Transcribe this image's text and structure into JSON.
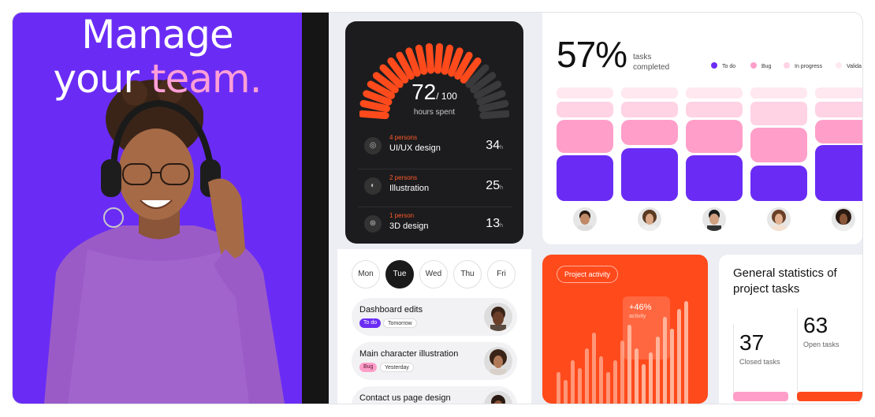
{
  "hero": {
    "line1": "Manage",
    "line2_a": "your ",
    "line2_b": "team.",
    "accent_color": "#ff9fd7",
    "bg_color": "#6a2cf5"
  },
  "hours": {
    "value": "72",
    "total": "/ 100",
    "label": "hours spent",
    "progress_fraction": 0.72
  },
  "tasks": [
    {
      "persons": "4 persons",
      "name": "UI/UX design",
      "hours": "34",
      "unit": "h",
      "icon": "layers-icon"
    },
    {
      "persons": "2 persons",
      "name": "Illustration",
      "hours": "25",
      "unit": "h",
      "icon": "palette-icon"
    },
    {
      "persons": "1 person",
      "name": "3D design",
      "hours": "13",
      "unit": "h",
      "icon": "ball-icon"
    }
  ],
  "days": [
    "Mon",
    "Tue",
    "Wed",
    "Thu",
    "Fri"
  ],
  "active_day": "Tue",
  "todos": [
    {
      "title": "Dashboard edits",
      "status": "To do",
      "due": "Tomorrow"
    },
    {
      "title": "Main character illustration",
      "status": "Bug",
      "due": "Yesterday"
    },
    {
      "title": "Contact us page design"
    }
  ],
  "completion": {
    "value": "57%",
    "label_line1": "tasks",
    "label_line2": "completed"
  },
  "legend": [
    {
      "label": "To do",
      "color": "#6a2cf5"
    },
    {
      "label": "Bug",
      "color": "#ff9fc9"
    },
    {
      "label": "In progress",
      "color": "#ffd2e4"
    },
    {
      "label": "Valida",
      "color": "#ffe8f0"
    }
  ],
  "activity": {
    "label": "Project activity",
    "change": "+46%",
    "change_label": "activity"
  },
  "general": {
    "title": "General statistics of project tasks",
    "closed_value": "37",
    "closed_label": "Closed tasks",
    "open_value": "63",
    "open_label": "Open tasks"
  }
}
